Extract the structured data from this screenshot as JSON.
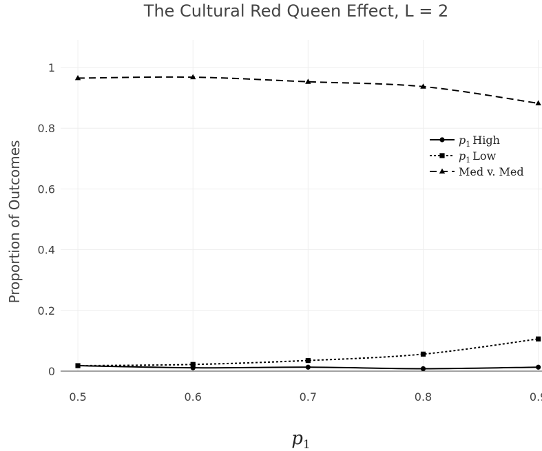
{
  "chart_data": {
    "type": "line",
    "title": "The Cultural Red Queen Effect, L = 2",
    "xlabel": "p1",
    "ylabel": "Proportion of Outcomes",
    "x": [
      0.5,
      0.6,
      0.7,
      0.8,
      0.9
    ],
    "xticks": [
      "0.5",
      "0.6",
      "0.7",
      "0.8",
      "0.9"
    ],
    "yticks": [
      "0",
      "0.2",
      "0.4",
      "0.6",
      "0.8",
      "1"
    ],
    "xlim": [
      0.485,
      0.905
    ],
    "ylim": [
      0,
      1
    ],
    "grid": true,
    "legend_position": "right",
    "series": [
      {
        "name": "p1 High",
        "dash": "solid",
        "marker": "circle",
        "color": "#000000",
        "values": [
          0.018,
          0.011,
          0.013,
          0.008,
          0.013
        ]
      },
      {
        "name": "p1 Low",
        "dash": "dot",
        "marker": "square",
        "color": "#000000",
        "values": [
          0.018,
          0.022,
          0.035,
          0.056,
          0.106
        ]
      },
      {
        "name": "Med v. Med",
        "dash": "dash",
        "marker": "triangle",
        "color": "#000000",
        "values": [
          0.965,
          0.968,
          0.953,
          0.937,
          0.882
        ]
      }
    ]
  }
}
